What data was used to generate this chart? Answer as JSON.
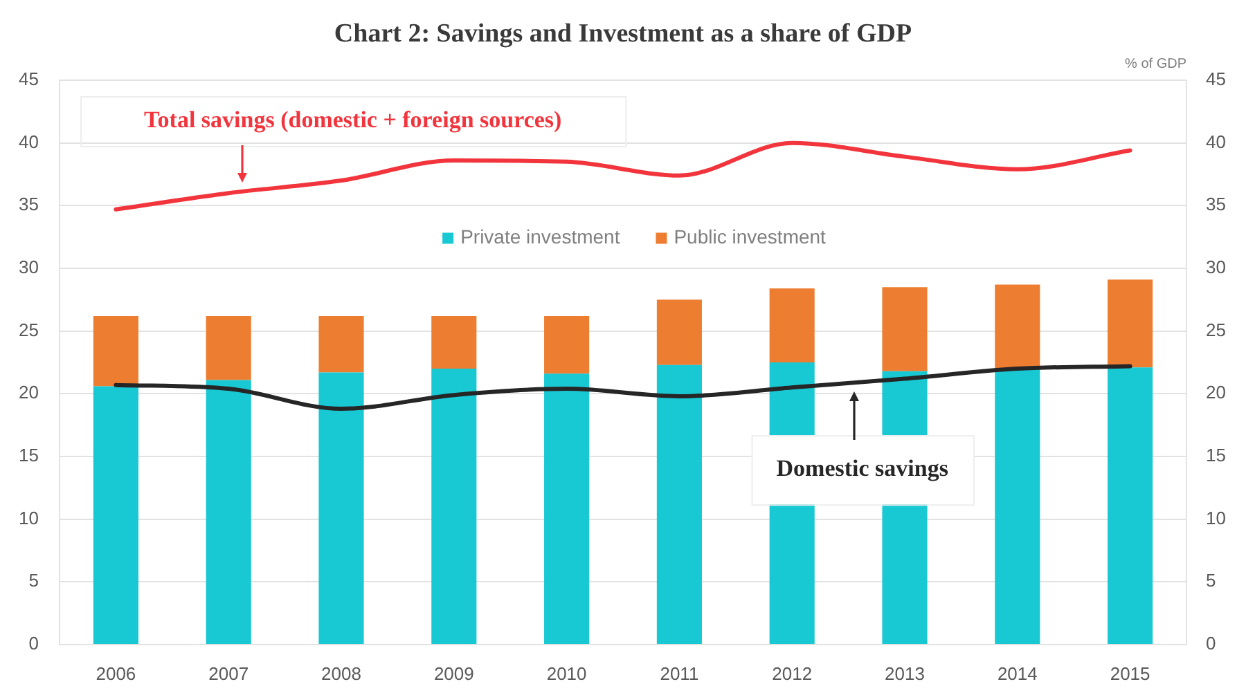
{
  "chart_data": {
    "type": "bar",
    "title": "Chart 2: Savings and Investment as a share of GDP",
    "y2label": "% of GDP",
    "categories": [
      "2006",
      "2007",
      "2008",
      "2009",
      "2010",
      "2011",
      "2012",
      "2013",
      "2014",
      "2015"
    ],
    "series": [
      {
        "name": "Private investment",
        "color": "#18c8d3",
        "values": [
          20.6,
          21.1,
          21.7,
          22.0,
          21.6,
          22.3,
          22.5,
          21.8,
          22.0,
          22.1
        ]
      },
      {
        "name": "Public investment",
        "color": "#ed7d31",
        "values": [
          5.6,
          5.1,
          4.5,
          4.2,
          4.6,
          5.2,
          5.9,
          6.7,
          6.7,
          7.0
        ]
      },
      {
        "name": "Total savings (domestic + foreign sources)",
        "type": "line",
        "color": "#f2353d",
        "values": [
          34.7,
          36.0,
          37.0,
          38.6,
          38.5,
          37.4,
          40.0,
          38.9,
          37.9,
          39.4
        ]
      },
      {
        "name": "Domestic savings",
        "type": "line",
        "color": "#262626",
        "values": [
          20.7,
          20.4,
          18.8,
          19.9,
          20.4,
          19.8,
          20.5,
          21.2,
          22.0,
          22.2
        ]
      }
    ],
    "stacked": true,
    "ylim": [
      0,
      45
    ],
    "yticks": [
      0,
      5,
      10,
      15,
      20,
      25,
      30,
      35,
      40,
      45
    ],
    "y2lim": [
      0,
      45
    ],
    "y2ticks": [
      0,
      5,
      10,
      15,
      20,
      25,
      30,
      35,
      40,
      45
    ],
    "grid": "y",
    "legend": "top"
  }
}
